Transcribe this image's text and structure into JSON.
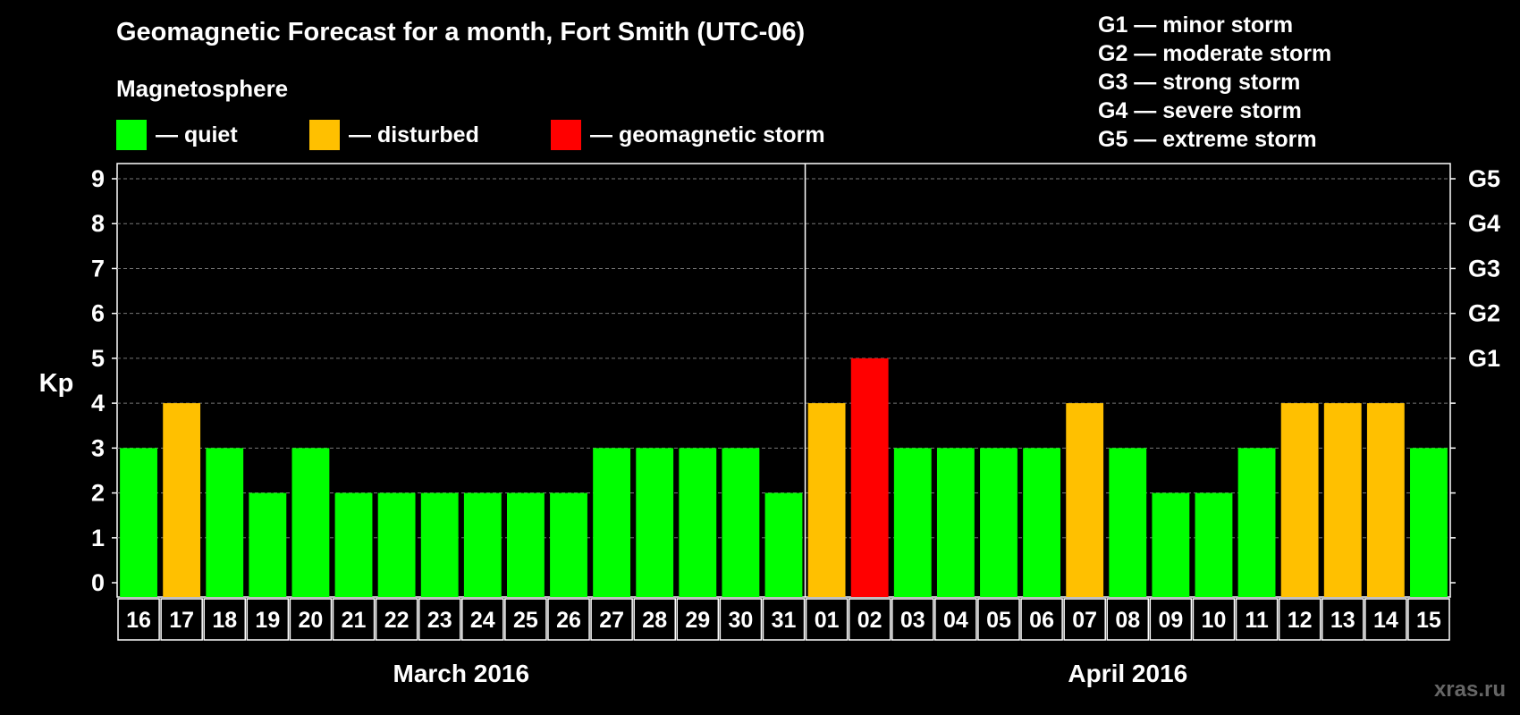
{
  "title": "Geomagnetic Forecast for a month, Fort Smith (UTC-06)",
  "subtitle": "Magnetosphere",
  "legend": [
    {
      "label": "— quiet",
      "color": "#00ff00"
    },
    {
      "label": "— disturbed",
      "color": "#ffc000"
    },
    {
      "label": "— geomagnetic storm",
      "color": "#ff0000"
    }
  ],
  "g_scale": [
    "G1 — minor storm",
    "G2 — moderate storm",
    "G3 — strong storm",
    "G4 — severe storm",
    "G5 — extreme storm"
  ],
  "watermark": "xras.ru",
  "chart_data": {
    "type": "bar",
    "ylabel": "Kp",
    "ylim": [
      0,
      9
    ],
    "y_ticks": [
      "0",
      "1",
      "2",
      "3",
      "4",
      "5",
      "6",
      "7",
      "8",
      "9"
    ],
    "right_axis_labels": [
      {
        "kp": 5,
        "label": "G1"
      },
      {
        "kp": 6,
        "label": "G2"
      },
      {
        "kp": 7,
        "label": "G3"
      },
      {
        "kp": 8,
        "label": "G4"
      },
      {
        "kp": 9,
        "label": "G5"
      }
    ],
    "categories": [
      "16",
      "17",
      "18",
      "19",
      "20",
      "21",
      "22",
      "23",
      "24",
      "25",
      "26",
      "27",
      "28",
      "29",
      "30",
      "31",
      "01",
      "02",
      "03",
      "04",
      "05",
      "06",
      "07",
      "08",
      "09",
      "10",
      "11",
      "12",
      "13",
      "14",
      "15"
    ],
    "values": [
      3,
      4,
      3,
      2,
      3,
      2,
      2,
      2,
      2,
      2,
      2,
      3,
      3,
      3,
      3,
      2,
      4,
      5,
      3,
      3,
      3,
      3,
      4,
      3,
      2,
      2,
      3,
      4,
      4,
      4,
      3
    ],
    "months": [
      {
        "label": "March 2016",
        "start": 0,
        "end": 15
      },
      {
        "label": "April 2016",
        "start": 16,
        "end": 30
      }
    ],
    "grid": true
  }
}
